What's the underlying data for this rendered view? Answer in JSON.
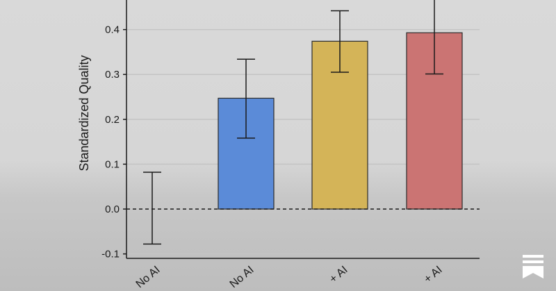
{
  "chart_data": {
    "type": "bar",
    "ylabel": "Standardized Quality",
    "ylim": [
      -0.1,
      0.46
    ],
    "yticks": [
      -0.1,
      0.0,
      0.1,
      0.2,
      0.3,
      0.4
    ],
    "ytick_labels": [
      "-0.1",
      "0.0",
      "0.1",
      "0.2",
      "0.3",
      "0.4"
    ],
    "grid": "horizontal",
    "baseline": "dashed at 0.0",
    "categories": [
      "No AI",
      "No AI",
      "+ AI",
      "+ AI"
    ],
    "values": [
      0.0,
      0.247,
      0.374,
      0.393
    ],
    "error_low": [
      -0.078,
      0.158,
      0.305,
      0.301
    ],
    "error_high": [
      0.082,
      0.334,
      0.442,
      0.48
    ],
    "bar_colors": [
      "none",
      "#5b8bd8",
      "#d4b458",
      "#cb7473"
    ]
  },
  "branding": {
    "icon": "bookmark-logo-icon"
  }
}
